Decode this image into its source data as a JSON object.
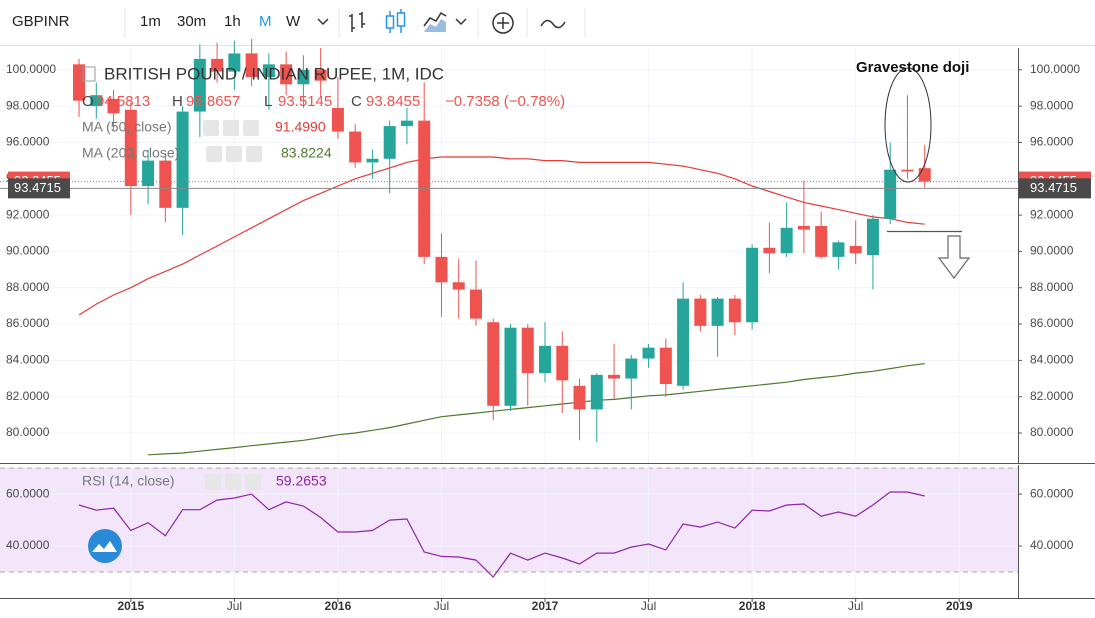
{
  "toolbar": {
    "symbol": "GBPINR",
    "intervals": [
      "1m",
      "30m",
      "1h",
      "M",
      "W"
    ],
    "active_interval": 3
  },
  "chart_data": [
    {
      "type": "candlestick",
      "title": "BRITISH POUND / INDIAN RUPEE, 1M, IDC",
      "ohlc_labels": [
        "O",
        "H",
        "L",
        "C"
      ],
      "change_label": "−0.7358 (−0.78%)",
      "annotation": "Gravestone doji",
      "categories": [
        "2014-10",
        "2014-11",
        "2014-12",
        "2015-01",
        "2015-02",
        "2015-03",
        "2015-04",
        "2015-05",
        "2015-06",
        "2015-07",
        "2015-08",
        "2015-09",
        "2015-10",
        "2015-11",
        "2015-12",
        "2016-01",
        "2016-02",
        "2016-03",
        "2016-04",
        "2016-05",
        "2016-06",
        "2016-07",
        "2016-08",
        "2016-09",
        "2016-10",
        "2016-11",
        "2016-12",
        "2017-01",
        "2017-02",
        "2017-03",
        "2017-04",
        "2017-05",
        "2017-06",
        "2017-07",
        "2017-08",
        "2017-09",
        "2017-10",
        "2017-11",
        "2017-12",
        "2018-01",
        "2018-02",
        "2018-03",
        "2018-04",
        "2018-05",
        "2018-06",
        "2018-07",
        "2018-08",
        "2018-09",
        "2018-10",
        "2018-11"
      ],
      "open": [
        100.3,
        98.0,
        98.4,
        97.8,
        93.6,
        95.0,
        92.4,
        97.7,
        100.6,
        99.9,
        100.9,
        99.6,
        100.3,
        99.2,
        100.0,
        97.9,
        96.6,
        94.9,
        95.1,
        96.9,
        97.2,
        89.7,
        88.3,
        87.9,
        86.1,
        81.5,
        85.8,
        83.3,
        84.8,
        82.6,
        81.3,
        83.2,
        83.0,
        84.1,
        84.7,
        82.6,
        87.4,
        85.9,
        87.4,
        86.1,
        90.2,
        89.9,
        91.4,
        91.4,
        89.7,
        90.3,
        89.8,
        91.8,
        94.5,
        94.5813
      ],
      "high": [
        100.6,
        99.3,
        98.9,
        98.2,
        95.6,
        95.4,
        98.0,
        101.4,
        101.5,
        101.6,
        101.7,
        100.9,
        101.0,
        100.8,
        101.2,
        99.6,
        97.0,
        95.6,
        97.2,
        97.9,
        99.3,
        91.0,
        89.6,
        89.5,
        86.3,
        86.0,
        86.0,
        86.1,
        85.6,
        83.0,
        83.3,
        84.9,
        84.3,
        84.9,
        85.2,
        88.3,
        87.6,
        87.5,
        87.6,
        90.4,
        91.6,
        92.7,
        93.9,
        92.2,
        90.6,
        91.7,
        92.0,
        96.0,
        98.6,
        95.8657
      ],
      "low": [
        97.4,
        97.3,
        96.7,
        92.0,
        92.6,
        91.6,
        90.9,
        96.3,
        99.3,
        98.9,
        99.1,
        97.8,
        98.6,
        97.9,
        98.5,
        96.2,
        94.6,
        94.0,
        93.2,
        95.9,
        89.3,
        86.4,
        86.3,
        85.9,
        80.7,
        81.2,
        81.5,
        82.8,
        81.1,
        79.6,
        79.5,
        81.9,
        81.3,
        83.6,
        82.0,
        82.4,
        85.6,
        84.2,
        85.4,
        85.7,
        88.8,
        89.7,
        89.9,
        89.6,
        89.0,
        89.3,
        87.9,
        91.5,
        94.0,
        93.5145
      ],
      "close": [
        98.3,
        98.6,
        97.6,
        93.6,
        95.0,
        92.4,
        97.7,
        100.6,
        99.9,
        100.9,
        99.6,
        100.3,
        99.2,
        100.0,
        99.4,
        96.6,
        94.9,
        95.1,
        96.9,
        97.2,
        89.7,
        88.3,
        87.9,
        86.3,
        81.5,
        85.8,
        83.3,
        84.8,
        82.9,
        81.3,
        83.2,
        83.0,
        84.1,
        84.7,
        82.7,
        87.4,
        85.9,
        87.4,
        86.1,
        90.2,
        89.9,
        91.3,
        91.2,
        89.7,
        90.5,
        89.9,
        91.8,
        94.5,
        94.4,
        93.8455
      ],
      "up_color": "#26a69a",
      "down_color": "#ef5350",
      "series": [
        {
          "name": "MA (50, close)",
          "color": "#e53935",
          "last_value_label": "91.4990",
          "values": [
            86.5,
            87.1,
            87.6,
            88.0,
            88.5,
            88.9,
            89.3,
            89.8,
            90.3,
            90.8,
            91.3,
            91.8,
            92.3,
            92.8,
            93.2,
            93.6,
            94.0,
            94.3,
            94.6,
            94.9,
            95.1,
            95.2,
            95.2,
            95.2,
            95.2,
            95.1,
            95.1,
            95.0,
            95.0,
            94.9,
            94.9,
            94.9,
            94.9,
            94.9,
            94.8,
            94.7,
            94.5,
            94.3,
            94.0,
            93.6,
            93.3,
            93.0,
            92.7,
            92.5,
            92.3,
            92.1,
            91.9,
            91.8,
            91.6,
            91.499
          ]
        },
        {
          "name": "MA (200, close)",
          "color": "#4b7b2b",
          "last_value_label": "83.8224",
          "values": [
            null,
            null,
            null,
            null,
            78.8,
            78.85,
            78.9,
            79.0,
            79.1,
            79.2,
            79.3,
            79.4,
            79.5,
            79.6,
            79.75,
            79.9,
            80.0,
            80.15,
            80.3,
            80.5,
            80.7,
            80.9,
            81.0,
            81.1,
            81.2,
            81.3,
            81.4,
            81.5,
            81.6,
            81.7,
            81.8,
            81.85,
            81.95,
            82.05,
            82.1,
            82.2,
            82.3,
            82.4,
            82.5,
            82.6,
            82.7,
            82.8,
            82.95,
            83.05,
            83.15,
            83.3,
            83.4,
            83.55,
            83.7,
            83.8224
          ]
        }
      ],
      "crosshair": 93.4715,
      "xlim": [
        "2014-06",
        "2019-04"
      ],
      "ylim": [
        78.35,
        101.2
      ],
      "yticks": [
        {
          "value": 80,
          "label": "80.0000"
        },
        {
          "value": 82,
          "label": "82.0000"
        },
        {
          "value": 84,
          "label": "84.0000"
        },
        {
          "value": 86,
          "label": "86.0000"
        },
        {
          "value": 88,
          "label": "88.0000"
        },
        {
          "value": 90,
          "label": "90.0000"
        },
        {
          "value": 92,
          "label": "92.0000"
        },
        {
          "value": 94,
          "label": "94.0000"
        },
        {
          "value": 96,
          "label": "96.0000"
        },
        {
          "value": 98,
          "label": "98.0000"
        },
        {
          "value": 100,
          "label": "100.0000"
        }
      ],
      "grid": true
    },
    {
      "type": "line",
      "title": "RSI (14, close)",
      "categories": [
        "2014-10",
        "2014-11",
        "2014-12",
        "2015-01",
        "2015-02",
        "2015-03",
        "2015-04",
        "2015-05",
        "2015-06",
        "2015-07",
        "2015-08",
        "2015-09",
        "2015-10",
        "2015-11",
        "2015-12",
        "2016-01",
        "2016-02",
        "2016-03",
        "2016-04",
        "2016-05",
        "2016-06",
        "2016-07",
        "2016-08",
        "2016-09",
        "2016-10",
        "2016-11",
        "2016-12",
        "2017-01",
        "2017-02",
        "2017-03",
        "2017-04",
        "2017-05",
        "2017-06",
        "2017-07",
        "2017-08",
        "2017-09",
        "2017-10",
        "2017-11",
        "2017-12",
        "2018-01",
        "2018-02",
        "2018-03",
        "2018-04",
        "2018-05",
        "2018-06",
        "2018-07",
        "2018-08",
        "2018-09",
        "2018-10",
        "2018-11"
      ],
      "series": [
        {
          "name": "RSI",
          "color": "#8e24aa",
          "values": [
            55.8,
            53.8,
            54.6,
            46,
            49,
            44,
            54,
            54,
            57.7,
            58.5,
            60,
            54,
            57,
            55.4,
            51,
            45.4,
            45.4,
            46,
            50,
            50.4,
            37.7,
            36,
            35.8,
            34.6,
            28.1,
            37.3,
            34.6,
            37.3,
            35.4,
            33.1,
            37.3,
            37.3,
            39.6,
            40.8,
            38.5,
            48.5,
            47.3,
            49.2,
            46.9,
            53.8,
            53.5,
            55.8,
            56.2,
            51.5,
            53.1,
            51.5,
            55.8,
            60.8,
            60.8,
            59.2653
          ]
        }
      ],
      "band": [
        30,
        70
      ],
      "band_color": "#f3e5fa",
      "xlim": [
        "2014-06",
        "2019-04"
      ],
      "ylim": [
        20,
        71.2
      ],
      "yticks": [
        {
          "value": 40,
          "label": "40.0000"
        },
        {
          "value": 60,
          "label": "60.0000"
        }
      ],
      "xticks": [
        {
          "value": "2015-01",
          "label": "2015"
        },
        {
          "value": "2015-07",
          "label": "Jul"
        },
        {
          "value": "2016-01",
          "label": "2016"
        },
        {
          "value": "2016-07",
          "label": "Jul"
        },
        {
          "value": "2017-01",
          "label": "2017"
        },
        {
          "value": "2017-07",
          "label": "Jul"
        },
        {
          "value": "2018-01",
          "label": "2018"
        },
        {
          "value": "2018-07",
          "label": "Jul"
        },
        {
          "value": "2019-01",
          "label": "2019"
        }
      ],
      "grid": true
    }
  ]
}
